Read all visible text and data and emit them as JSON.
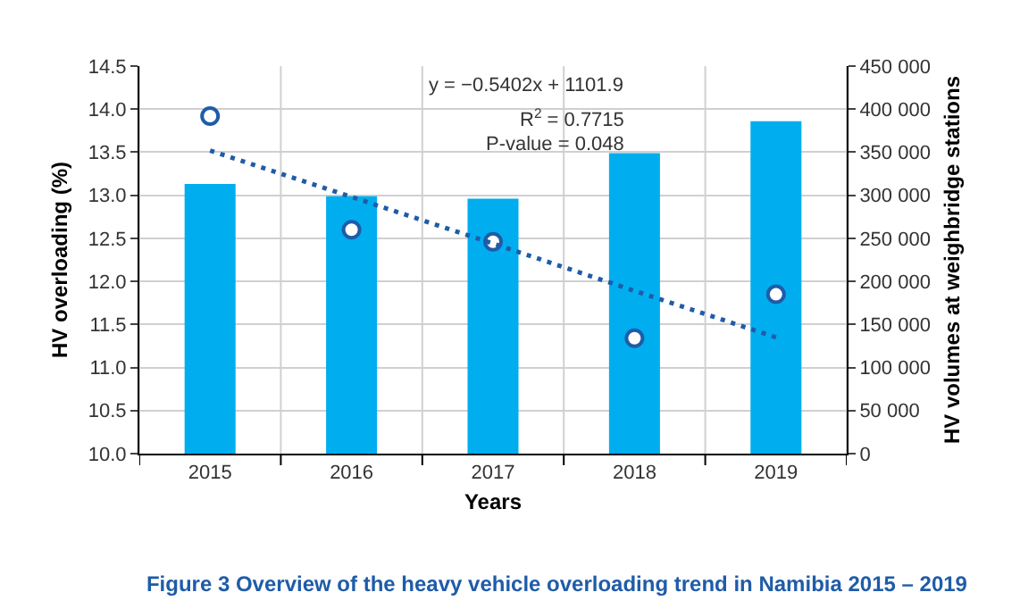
{
  "chart_data": {
    "type": "bar",
    "title": "Figure 3 Overview of the heavy vehicle overloading trend in Namibia 2015 – 2019",
    "xlabel": "Years",
    "ylabel": "HV overloading (%)",
    "y2label": "HV volumes at weighbridge stations",
    "categories": [
      "2015",
      "2016",
      "2017",
      "2018",
      "2019"
    ],
    "series": [
      {
        "axis": "y2",
        "color": "#00aeef",
        "values": [
          313000,
          299000,
          296000,
          349000,
          386000
        ]
      },
      {
        "type": "scatter",
        "axis": "y",
        "color": "#1f5ca8",
        "marker": "circle",
        "values": [
          13.92,
          12.6,
          12.46,
          11.34,
          11.85
        ]
      },
      {
        "type": "line",
        "axis": "y",
        "color": "#1f5ca8",
        "marker": "none",
        "line_style": "dotted",
        "values": [
          13.52,
          12.98,
          12.44,
          11.89,
          11.35
        ]
      }
    ],
    "ylim": [
      10,
      14.5
    ],
    "yticks": [
      {
        "value": 10,
        "label": "10.0"
      },
      {
        "value": 10.5,
        "label": "10.5"
      },
      {
        "value": 11,
        "label": "11.0"
      },
      {
        "value": 11.5,
        "label": "11.5"
      },
      {
        "value": 12,
        "label": "12.0"
      },
      {
        "value": 12.5,
        "label": "12.5"
      },
      {
        "value": 13,
        "label": "13.0"
      },
      {
        "value": 13.5,
        "label": "13.5"
      },
      {
        "value": 14,
        "label": "14.0"
      },
      {
        "value": 14.5,
        "label": "14.5"
      }
    ],
    "y2lim": [
      0,
      450000
    ],
    "y2ticks": [
      0,
      {
        "value": 50000,
        "label": "50 000"
      },
      {
        "value": 100000,
        "label": "100 000"
      },
      {
        "value": 150000,
        "label": "150 000"
      },
      {
        "value": 200000,
        "label": "200 000"
      },
      {
        "value": 250000,
        "label": "250 000"
      },
      {
        "value": 300000,
        "label": "300 000"
      },
      {
        "value": 350000,
        "label": "350 000"
      },
      {
        "value": 400000,
        "label": "400 000"
      },
      {
        "value": 450000,
        "label": "450 000"
      }
    ],
    "annotations": [
      "y = −0.5402x + 1101.9",
      "R$^{2}$ = 0.7715",
      "P-value = 0.048"
    ],
    "grid": true
  }
}
